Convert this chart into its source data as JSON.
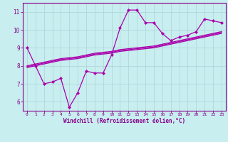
{
  "title": "",
  "xlabel": "Windchill (Refroidissement éolien,°C)",
  "ylabel": "",
  "bg_color": "#c8eef0",
  "grid_color": "#c0dfe0",
  "line_color": "#aa00aa",
  "marker_color": "#aa00aa",
  "x_data": [
    0,
    1,
    2,
    3,
    4,
    5,
    6,
    7,
    8,
    9,
    10,
    11,
    12,
    13,
    14,
    15,
    16,
    17,
    18,
    19,
    20,
    21,
    22,
    23
  ],
  "y_main": [
    9.0,
    8.0,
    7.0,
    7.1,
    7.3,
    5.7,
    6.5,
    7.7,
    7.6,
    7.6,
    8.6,
    10.1,
    11.1,
    11.1,
    10.4,
    10.4,
    9.8,
    9.4,
    9.6,
    9.7,
    9.9,
    10.6,
    10.5,
    10.4
  ],
  "y_reg1": [
    7.9,
    8.0,
    8.1,
    8.2,
    8.3,
    8.35,
    8.4,
    8.5,
    8.6,
    8.65,
    8.7,
    8.8,
    8.85,
    8.9,
    8.95,
    9.0,
    9.1,
    9.2,
    9.3,
    9.4,
    9.5,
    9.6,
    9.7,
    9.8
  ],
  "y_reg2": [
    7.95,
    8.05,
    8.15,
    8.25,
    8.35,
    8.4,
    8.45,
    8.55,
    8.65,
    8.7,
    8.75,
    8.85,
    8.9,
    8.95,
    9.0,
    9.05,
    9.15,
    9.25,
    9.35,
    9.45,
    9.55,
    9.65,
    9.75,
    9.85
  ],
  "y_reg3": [
    8.0,
    8.1,
    8.2,
    8.3,
    8.4,
    8.45,
    8.5,
    8.6,
    8.7,
    8.75,
    8.8,
    8.9,
    8.95,
    9.0,
    9.05,
    9.1,
    9.2,
    9.3,
    9.4,
    9.5,
    9.6,
    9.7,
    9.8,
    9.9
  ],
  "ylim": [
    5.5,
    11.5
  ],
  "yticks": [
    6,
    7,
    8,
    9,
    10,
    11
  ],
  "xlim": [
    -0.5,
    23.5
  ],
  "xticks": [
    0,
    1,
    2,
    3,
    4,
    5,
    6,
    7,
    8,
    9,
    10,
    11,
    12,
    13,
    14,
    15,
    16,
    17,
    18,
    19,
    20,
    21,
    22,
    23
  ],
  "xlabel_color": "#880088",
  "tick_color": "#880088",
  "border_color": "#880088"
}
